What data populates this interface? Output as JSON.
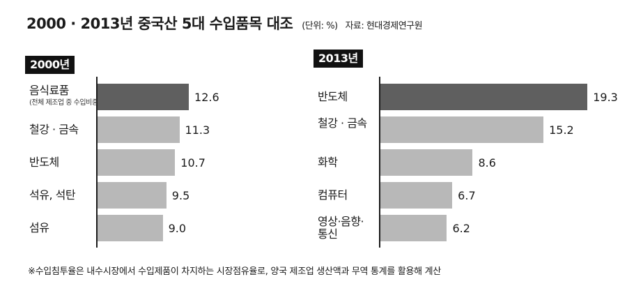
{
  "title": {
    "main": "2000 · 2013년 중국산 5대 수입품목 대조",
    "unit": "(단위: %)",
    "source": "자료: 현대경제연구원"
  },
  "colors": {
    "highlight_bar": "#5f5f5f",
    "normal_bar": "#b8b8b8",
    "tag_bg": "#111111"
  },
  "chart_data": [
    {
      "type": "bar",
      "orientation": "horizontal",
      "panel_label": "2000년",
      "categories": [
        "음식료품",
        "철강 · 금속",
        "반도체",
        "석유, 석탄",
        "섬유"
      ],
      "category_notes": [
        "(전체 제조업 중 수입비중)",
        "",
        "",
        "",
        ""
      ],
      "values": [
        12.6,
        11.3,
        10.7,
        9.5,
        9.0
      ],
      "value_labels": [
        "12.6",
        "11.3",
        "10.7",
        "9.5",
        "9.0"
      ],
      "highlight_index": 0,
      "xlim": [
        0,
        20
      ]
    },
    {
      "type": "bar",
      "orientation": "horizontal",
      "panel_label": "2013년",
      "categories": [
        "반도체",
        "철강 · 금속",
        "화학",
        "컴퓨터",
        "영상·음향·통신"
      ],
      "category_notes": [
        "",
        "",
        "",
        "",
        ""
      ],
      "values": [
        19.3,
        15.2,
        8.6,
        6.7,
        6.2
      ],
      "value_labels": [
        "19.3",
        "15.2",
        "8.6",
        "6.7",
        "6.2"
      ],
      "highlight_index": 0,
      "xlim": [
        0,
        20
      ]
    }
  ],
  "footnote": "※수입침투율은 내수시장에서 수입제품이 차지하는 시장점유율로, 양국 제조업 생산액과 무역 통계를 활용해 계산"
}
